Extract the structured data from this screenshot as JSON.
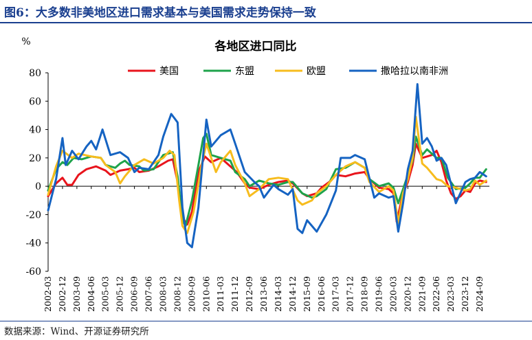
{
  "figure_title": "图6：大多数非美地区进口需求基本与美国需求走势保持一致",
  "source": "数据来源：Wind、开源证券研究所",
  "chart_data": {
    "type": "line",
    "title": "各地区进口同比",
    "ylabel": "%",
    "ylim": [
      -60,
      80
    ],
    "yticks": [
      -60,
      -40,
      -20,
      0,
      20,
      40,
      60,
      80
    ],
    "grid": false,
    "legend_position": "top",
    "xlim": [
      "2002-03",
      "2025-03"
    ],
    "x_ticks": [
      "2002-03",
      "2002-12",
      "2003-09",
      "2004-06",
      "2005-03",
      "2005-12",
      "2006-09",
      "2007-06",
      "2008-03",
      "2008-12",
      "2009-09",
      "2010-06",
      "2011-03",
      "2011-12",
      "2012-09",
      "2013-06",
      "2014-03",
      "2014-12",
      "2015-09",
      "2016-06",
      "2017-03",
      "2017-12",
      "2018-09",
      "2019-06",
      "2020-03",
      "2020-12",
      "2021-09",
      "2022-06",
      "2023-03",
      "2023-12",
      "2024-09"
    ],
    "series": [
      {
        "name": "美国",
        "color": "#e8141c",
        "points": [
          [
            "2002-03",
            -7
          ],
          [
            "2002-08",
            2
          ],
          [
            "2002-12",
            6
          ],
          [
            "2003-03",
            1
          ],
          [
            "2003-06",
            1
          ],
          [
            "2003-10",
            8
          ],
          [
            "2004-03",
            12
          ],
          [
            "2004-09",
            14
          ],
          [
            "2005-03",
            11
          ],
          [
            "2005-06",
            8
          ],
          [
            "2005-12",
            11
          ],
          [
            "2006-05",
            12
          ],
          [
            "2006-09",
            13
          ],
          [
            "2006-12",
            10
          ],
          [
            "2007-06",
            11
          ],
          [
            "2007-12",
            14
          ],
          [
            "2008-06",
            18
          ],
          [
            "2008-09",
            19
          ],
          [
            "2008-12",
            3
          ],
          [
            "2009-03",
            -22
          ],
          [
            "2009-06",
            -27
          ],
          [
            "2009-09",
            -18
          ],
          [
            "2010-01",
            10
          ],
          [
            "2010-05",
            21
          ],
          [
            "2010-09",
            17
          ],
          [
            "2011-03",
            20
          ],
          [
            "2011-09",
            14
          ],
          [
            "2012-01",
            10
          ],
          [
            "2012-06",
            2
          ],
          [
            "2012-09",
            -1
          ],
          [
            "2013-03",
            -2
          ],
          [
            "2013-09",
            1
          ],
          [
            "2014-03",
            3
          ],
          [
            "2014-09",
            4
          ],
          [
            "2014-12",
            2
          ],
          [
            "2015-06",
            -5
          ],
          [
            "2015-09",
            -7
          ],
          [
            "2016-03",
            -5
          ],
          [
            "2016-06",
            -1
          ],
          [
            "2016-12",
            4
          ],
          [
            "2017-03",
            8
          ],
          [
            "2017-09",
            7
          ],
          [
            "2018-03",
            9
          ],
          [
            "2018-09",
            10
          ],
          [
            "2018-12",
            5
          ],
          [
            "2019-06",
            -1
          ],
          [
            "2019-12",
            -2
          ],
          [
            "2020-03",
            -5
          ],
          [
            "2020-05",
            -25
          ],
          [
            "2020-09",
            -5
          ],
          [
            "2020-12",
            3
          ],
          [
            "2021-03",
            15
          ],
          [
            "2021-05",
            30
          ],
          [
            "2021-09",
            20
          ],
          [
            "2022-03",
            22
          ],
          [
            "2022-06",
            25
          ],
          [
            "2022-09",
            17
          ],
          [
            "2022-12",
            4
          ],
          [
            "2023-03",
            -5
          ],
          [
            "2023-06",
            -9
          ],
          [
            "2023-09",
            -7
          ],
          [
            "2023-12",
            -3
          ],
          [
            "2024-03",
            -4
          ],
          [
            "2024-06",
            2
          ],
          [
            "2024-09",
            4
          ],
          [
            "2025-01",
            3
          ]
        ]
      },
      {
        "name": "东盟",
        "color": "#1ea34b",
        "points": [
          [
            "2002-03",
            -3
          ],
          [
            "2002-08",
            12
          ],
          [
            "2002-12",
            17
          ],
          [
            "2003-03",
            15
          ],
          [
            "2003-07",
            20
          ],
          [
            "2003-12",
            19
          ],
          [
            "2004-06",
            21
          ],
          [
            "2004-12",
            20
          ],
          [
            "2005-03",
            15
          ],
          [
            "2005-09",
            13
          ],
          [
            "2005-12",
            16
          ],
          [
            "2006-03",
            18
          ],
          [
            "2006-06",
            15
          ],
          [
            "2006-12",
            14
          ],
          [
            "2007-03",
            11
          ],
          [
            "2007-09",
            12
          ],
          [
            "2008-03",
            22
          ],
          [
            "2008-09",
            24
          ],
          [
            "2008-12",
            7
          ],
          [
            "2009-03",
            -24
          ],
          [
            "2009-05",
            -28
          ],
          [
            "2009-09",
            -10
          ],
          [
            "2010-01",
            15
          ],
          [
            "2010-04",
            34
          ],
          [
            "2010-06",
            37
          ],
          [
            "2010-09",
            22
          ],
          [
            "2011-03",
            20
          ],
          [
            "2011-09",
            18
          ],
          [
            "2011-12",
            10
          ],
          [
            "2012-06",
            5
          ],
          [
            "2012-09",
            0
          ],
          [
            "2013-03",
            4
          ],
          [
            "2013-09",
            2
          ],
          [
            "2014-03",
            1
          ],
          [
            "2014-09",
            3
          ],
          [
            "2014-12",
            3
          ],
          [
            "2015-06",
            -5
          ],
          [
            "2015-12",
            -8
          ],
          [
            "2016-03",
            -7
          ],
          [
            "2016-09",
            -2
          ],
          [
            "2017-03",
            12
          ],
          [
            "2017-09",
            13
          ],
          [
            "2018-03",
            17
          ],
          [
            "2018-09",
            13
          ],
          [
            "2018-12",
            5
          ],
          [
            "2019-06",
            0
          ],
          [
            "2019-12",
            2
          ],
          [
            "2020-03",
            -1
          ],
          [
            "2020-06",
            -12
          ],
          [
            "2020-09",
            -2
          ],
          [
            "2020-12",
            8
          ],
          [
            "2021-03",
            18
          ],
          [
            "2021-05",
            35
          ],
          [
            "2021-09",
            22
          ],
          [
            "2021-12",
            26
          ],
          [
            "2022-06",
            20
          ],
          [
            "2022-09",
            20
          ],
          [
            "2023-01",
            6
          ],
          [
            "2023-06",
            -2
          ],
          [
            "2023-12",
            -1
          ],
          [
            "2024-03",
            2
          ],
          [
            "2024-06",
            6
          ],
          [
            "2024-09",
            6
          ],
          [
            "2025-01",
            12
          ]
        ]
      },
      {
        "name": "欧盟",
        "color": "#f7bc1d",
        "points": [
          [
            "2002-03",
            -6
          ],
          [
            "2002-08",
            14
          ],
          [
            "2002-12",
            25
          ],
          [
            "2003-06",
            20
          ],
          [
            "2003-10",
            23
          ],
          [
            "2004-06",
            21
          ],
          [
            "2004-12",
            20
          ],
          [
            "2005-03",
            15
          ],
          [
            "2005-09",
            10
          ],
          [
            "2005-12",
            2
          ],
          [
            "2006-03",
            7
          ],
          [
            "2006-09",
            15
          ],
          [
            "2007-03",
            19
          ],
          [
            "2007-09",
            16
          ],
          [
            "2008-03",
            20
          ],
          [
            "2008-07",
            25
          ],
          [
            "2008-10",
            22
          ],
          [
            "2009-01",
            -10
          ],
          [
            "2009-03",
            -28
          ],
          [
            "2009-06",
            -33
          ],
          [
            "2009-10",
            -18
          ],
          [
            "2010-03",
            15
          ],
          [
            "2010-06",
            30
          ],
          [
            "2010-12",
            10
          ],
          [
            "2011-03",
            17
          ],
          [
            "2011-09",
            25
          ],
          [
            "2011-12",
            15
          ],
          [
            "2012-06",
            2
          ],
          [
            "2012-09",
            -7
          ],
          [
            "2013-03",
            -2
          ],
          [
            "2013-09",
            5
          ],
          [
            "2014-03",
            6
          ],
          [
            "2014-09",
            5
          ],
          [
            "2015-03",
            -10
          ],
          [
            "2015-06",
            -13
          ],
          [
            "2015-12",
            -10
          ],
          [
            "2016-03",
            -5
          ],
          [
            "2016-09",
            0
          ],
          [
            "2017-03",
            8
          ],
          [
            "2017-09",
            14
          ],
          [
            "2018-03",
            17
          ],
          [
            "2018-09",
            13
          ],
          [
            "2018-12",
            3
          ],
          [
            "2019-06",
            -4
          ],
          [
            "2019-12",
            0
          ],
          [
            "2020-03",
            -3
          ],
          [
            "2020-06",
            -26
          ],
          [
            "2020-09",
            -5
          ],
          [
            "2020-12",
            5
          ],
          [
            "2021-03",
            20
          ],
          [
            "2021-05",
            49
          ],
          [
            "2021-09",
            16
          ],
          [
            "2021-12",
            13
          ],
          [
            "2022-06",
            5
          ],
          [
            "2022-09",
            4
          ],
          [
            "2023-01",
            0
          ],
          [
            "2023-06",
            -1
          ],
          [
            "2023-12",
            -3
          ],
          [
            "2024-03",
            -2
          ],
          [
            "2024-06",
            4
          ],
          [
            "2024-09",
            1
          ],
          [
            "2025-01",
            4
          ]
        ]
      },
      {
        "name": "撒哈拉以南非洲",
        "color": "#1563c2",
        "points": [
          [
            "2002-03",
            -17
          ],
          [
            "2002-08",
            5
          ],
          [
            "2002-12",
            34
          ],
          [
            "2003-02",
            15
          ],
          [
            "2003-06",
            25
          ],
          [
            "2003-10",
            19
          ],
          [
            "2004-03",
            28
          ],
          [
            "2004-06",
            32
          ],
          [
            "2004-09",
            26
          ],
          [
            "2005-01",
            40
          ],
          [
            "2005-06",
            22
          ],
          [
            "2005-12",
            24
          ],
          [
            "2006-05",
            20
          ],
          [
            "2006-09",
            10
          ],
          [
            "2006-12",
            13
          ],
          [
            "2007-06",
            12
          ],
          [
            "2007-12",
            22
          ],
          [
            "2008-03",
            35
          ],
          [
            "2008-08",
            51
          ],
          [
            "2008-12",
            45
          ],
          [
            "2009-03",
            -15
          ],
          [
            "2009-06",
            -40
          ],
          [
            "2009-09",
            -43
          ],
          [
            "2010-01",
            -15
          ],
          [
            "2010-06",
            47
          ],
          [
            "2010-09",
            28
          ],
          [
            "2011-03",
            36
          ],
          [
            "2011-09",
            40
          ],
          [
            "2011-12",
            30
          ],
          [
            "2012-06",
            10
          ],
          [
            "2012-12",
            3
          ],
          [
            "2013-03",
            0
          ],
          [
            "2013-06",
            -8
          ],
          [
            "2013-12",
            1
          ],
          [
            "2014-03",
            -2
          ],
          [
            "2014-09",
            -6
          ],
          [
            "2014-12",
            -2
          ],
          [
            "2015-03",
            -30
          ],
          [
            "2015-06",
            -33
          ],
          [
            "2015-09",
            -24
          ],
          [
            "2015-12",
            -28
          ],
          [
            "2016-03",
            -32
          ],
          [
            "2016-09",
            -20
          ],
          [
            "2017-03",
            -3
          ],
          [
            "2017-06",
            20
          ],
          [
            "2017-12",
            20
          ],
          [
            "2018-03",
            22
          ],
          [
            "2018-09",
            19
          ],
          [
            "2019-03",
            -8
          ],
          [
            "2019-06",
            -5
          ],
          [
            "2019-12",
            -8
          ],
          [
            "2020-03",
            -7
          ],
          [
            "2020-06",
            -32
          ],
          [
            "2020-09",
            -12
          ],
          [
            "2020-12",
            12
          ],
          [
            "2021-03",
            25
          ],
          [
            "2021-06",
            72
          ],
          [
            "2021-09",
            30
          ],
          [
            "2021-12",
            34
          ],
          [
            "2022-03",
            28
          ],
          [
            "2022-06",
            18
          ],
          [
            "2022-09",
            20
          ],
          [
            "2022-12",
            15
          ],
          [
            "2023-06",
            -12
          ],
          [
            "2023-12",
            3
          ],
          [
            "2024-03",
            5
          ],
          [
            "2024-06",
            6
          ],
          [
            "2024-09",
            10
          ],
          [
            "2025-01",
            7
          ]
        ]
      }
    ]
  }
}
